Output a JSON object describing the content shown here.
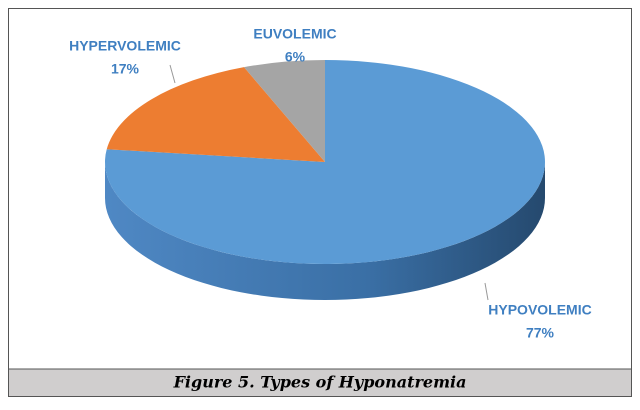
{
  "chart_data": {
    "type": "pie3d",
    "title": "Figure 5. Types of Hyponatremia",
    "categories": [
      "HYPOVOLEMIC",
      "HYPERVOLEMIC",
      "EUVOLEMIC"
    ],
    "values": [
      77,
      17,
      6
    ],
    "value_labels": [
      "77%",
      "17%",
      "6%"
    ],
    "colors": [
      "#5b9bd5",
      "#ed7d31",
      "#a5a5a5"
    ]
  }
}
